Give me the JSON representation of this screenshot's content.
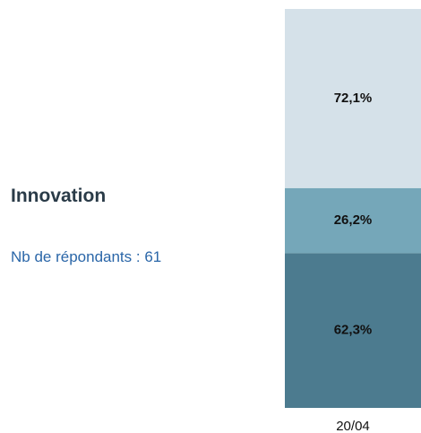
{
  "chart_data": {
    "type": "stacked_bar",
    "title": "Innovation",
    "subtitle": "Nb de répondants : 61",
    "categories": [
      "20/04"
    ],
    "series": [
      {
        "color": "#4c7b8f",
        "values": [
          62.3
        ],
        "value_labels": [
          "62,3%"
        ]
      },
      {
        "color": "#75a7b9",
        "values": [
          26.2
        ],
        "value_labels": [
          "26,2%"
        ]
      },
      {
        "color": "#d5e1e9",
        "values": [
          72.1
        ],
        "value_labels": [
          "72,1%"
        ]
      }
    ]
  }
}
